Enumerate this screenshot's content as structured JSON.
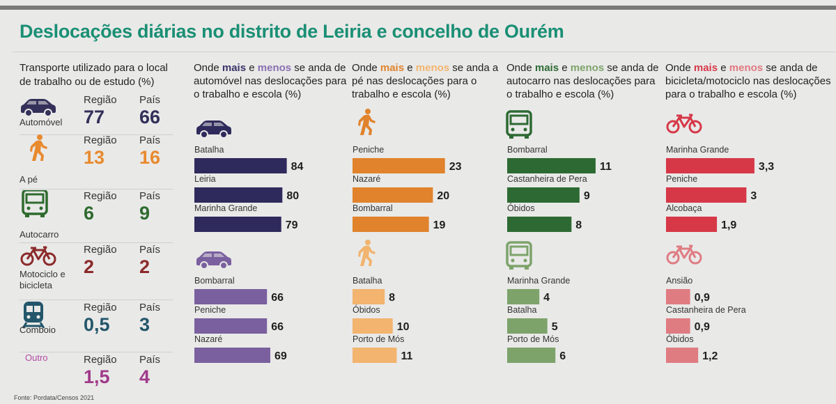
{
  "title": "Deslocações diárias no distrito de Leiria e concelho de Ourém",
  "source": "Fonte: Pordata/Censos 2021",
  "summary": {
    "title": "Transporte utilizado para o local de trabalho ou de estudo (%)",
    "label_regiao": "Região",
    "label_pais": "País",
    "modes": [
      {
        "name": "Automóvel",
        "icon": "car-icon",
        "regiao": "77",
        "pais": "66",
        "color": "#33305a"
      },
      {
        "name": "A pé",
        "icon": "walking-person-icon",
        "regiao": "13",
        "pais": "16",
        "color": "#e88a2e"
      },
      {
        "name": "Autocarro",
        "icon": "bus-icon",
        "regiao": "6",
        "pais": "9",
        "color": "#2f6b2f"
      },
      {
        "name": "Motociclo e bicicleta",
        "icon": "bicycle-icon",
        "regiao": "2",
        "pais": "2",
        "color": "#8b2a2a"
      },
      {
        "name": "Comboio",
        "icon": "train-icon",
        "regiao": "0,5",
        "pais": "3",
        "color": "#23566a"
      },
      {
        "name": "Outro",
        "icon": "",
        "regiao": "1,5",
        "pais": "4",
        "color": "#a03a8a"
      }
    ]
  },
  "panels": [
    {
      "t_pre": "Onde ",
      "t_mais": "mais",
      "t_e": " e ",
      "t_menos": "menos",
      "t_post": " se anda de automóvel nas deslocações para o trabalho e escola (%)",
      "mais_color": "#3a3468",
      "menos_color": "#8a6fb0"
    },
    {
      "t_pre": "Onde ",
      "t_mais": "mais",
      "t_e": " e ",
      "t_menos": "menos",
      "t_post": " se anda a pé nas deslocações para o trabalho e escola (%)",
      "mais_color": "#e0832c",
      "menos_color": "#f2b56e"
    },
    {
      "t_pre": "Onde ",
      "t_mais": "mais",
      "t_e": " e ",
      "t_menos": "menos",
      "t_post": " se anda de autocarro nas deslocações para o trabalho e escola (%)",
      "mais_color": "#2e6b34",
      "menos_color": "#7da36a"
    },
    {
      "t_pre": "Onde ",
      "t_mais": "mais",
      "t_e": " e ",
      "t_menos": "menos",
      "t_post": " se anda de bicicleta/motociclo nas deslocações para o trabalho e escola (%)",
      "mais_color": "#d83a4a",
      "menos_color": "#e07a80"
    }
  ],
  "chart_data": [
    {
      "type": "bar",
      "icon": "car-icon",
      "color": "#2f2a5c",
      "categories": [
        "Batalha",
        "Leiria",
        "Marinha Grande"
      ],
      "values": [
        84,
        80,
        79
      ],
      "labels": [
        "84",
        "80",
        "79"
      ],
      "xlim": [
        0,
        95
      ]
    },
    {
      "type": "bar",
      "icon": "car-icon",
      "color": "#7a609e",
      "categories": [
        "Bombarral",
        "Peniche",
        "Nazaré"
      ],
      "values": [
        66,
        66,
        69
      ],
      "labels": [
        "66",
        "66",
        "69"
      ],
      "xlim": [
        0,
        95
      ]
    },
    {
      "type": "bar",
      "icon": "walking-person-icon",
      "color": "#e0832c",
      "categories": [
        "Peniche",
        "Nazaré",
        "Bombarral"
      ],
      "values": [
        23,
        20,
        19
      ],
      "labels": [
        "23",
        "20",
        "19"
      ],
      "xlim": [
        0,
        26
      ]
    },
    {
      "type": "bar",
      "icon": "walking-person-icon",
      "color": "#f2b46e",
      "categories": [
        "Batalha",
        "Óbidos",
        "Porto de Mós"
      ],
      "values": [
        8,
        10,
        11
      ],
      "labels": [
        "8",
        "10",
        "11"
      ],
      "xlim": [
        0,
        26
      ]
    },
    {
      "type": "bar",
      "icon": "bus-icon",
      "color": "#2d6a33",
      "categories": [
        "Bombarral",
        "Castanheira de Pera",
        "Óbidos"
      ],
      "values": [
        11,
        9,
        8
      ],
      "labels": [
        "11",
        "9",
        "8"
      ],
      "xlim": [
        0,
        13
      ]
    },
    {
      "type": "bar",
      "icon": "bus-icon",
      "color": "#7da36a",
      "categories": [
        "Marinha Grande",
        "Batalha",
        "Porto de Mós"
      ],
      "values": [
        4,
        5,
        6
      ],
      "labels": [
        "4",
        "5",
        "6"
      ],
      "xlim": [
        0,
        13
      ]
    },
    {
      "type": "bar",
      "icon": "bicycle-icon",
      "color": "#d63848",
      "categories": [
        "Marinha Grande",
        "Peniche",
        "Alcobaça"
      ],
      "values": [
        3.3,
        3,
        1.9
      ],
      "labels": [
        "3,3",
        "3",
        "1,9"
      ],
      "xlim": [
        0,
        3.9
      ]
    },
    {
      "type": "bar",
      "icon": "bicycle-icon",
      "color": "#df7c82",
      "categories": [
        "Ansião",
        "Castanheira de Pera",
        "Óbidos"
      ],
      "values": [
        0.9,
        0.9,
        1.2
      ],
      "labels": [
        "0,9",
        "0,9",
        "1,2"
      ],
      "xlim": [
        0,
        3.9
      ]
    }
  ]
}
